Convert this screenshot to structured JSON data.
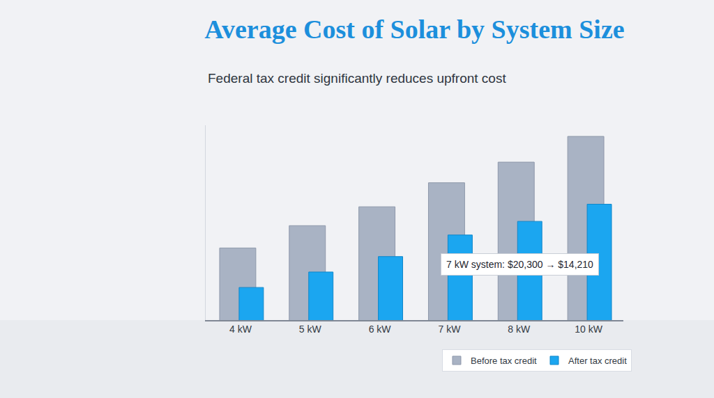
{
  "chart_data": {
    "type": "bar",
    "title": "Average Cost of Solar by System Size",
    "subtitle": "Federal tax credit significantly reduces upfront cost",
    "categories": [
      "4 kW",
      "5 kW",
      "6 kW",
      "7 kW",
      "8 kW",
      "10 kW"
    ],
    "series": [
      {
        "name": "Before tax credit",
        "color": "#a9b3c4",
        "values": [
          12700,
          15300,
          17500,
          20300,
          22700,
          25700
        ]
      },
      {
        "name": "After tax credit",
        "color": "#1ba6f0",
        "values": [
          8100,
          9900,
          11700,
          14210,
          15800,
          17800
        ]
      }
    ],
    "ylim": [
      4300,
      27000
    ],
    "grid": false,
    "legend": "bottom right",
    "tick_labels": "x",
    "annotations": [
      {
        "text": "7 kW system: $20,300 → $14,210",
        "category": "7 kW"
      }
    ]
  }
}
